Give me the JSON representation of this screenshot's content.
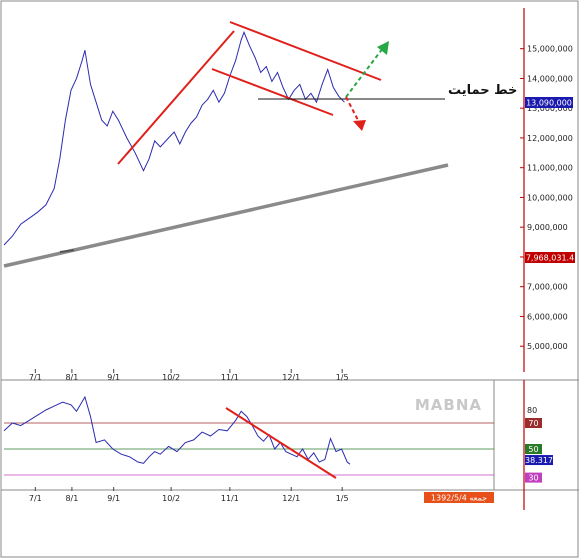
{
  "chart_data": [
    {
      "type": "line",
      "panel": "price",
      "x_ticks": [
        "7/1",
        "8/1",
        "9/1",
        "10/2",
        "11/1",
        "12/1",
        "1/5"
      ],
      "y_ticks": [
        "15,000,000",
        "14,000,000",
        "13,000,000",
        "12,000,000",
        "11,000,000",
        "10,000,000",
        "9,000,000",
        "8,000,000",
        "7,000,000",
        "6,000,000",
        "5,000,000"
      ],
      "ylim": [
        4200000,
        16300000
      ],
      "series": [
        {
          "color": "#2b2bb0",
          "points": [
            [
              0,
              8400000
            ],
            [
              0.3,
              8700000
            ],
            [
              0.6,
              9100000
            ],
            [
              0.9,
              9300000
            ],
            [
              1.2,
              9500000
            ],
            [
              1.5,
              9750000
            ],
            [
              1.8,
              10300000
            ],
            [
              2.0,
              11300000
            ],
            [
              2.2,
              12600000
            ],
            [
              2.4,
              13600000
            ],
            [
              2.6,
              14000000
            ],
            [
              2.8,
              14600000
            ],
            [
              2.9,
              14950000
            ],
            [
              3.1,
              13800000
            ],
            [
              3.3,
              13200000
            ],
            [
              3.5,
              12600000
            ],
            [
              3.7,
              12400000
            ],
            [
              3.9,
              12900000
            ],
            [
              4.1,
              12600000
            ],
            [
              4.4,
              12000000
            ],
            [
              4.7,
              11500000
            ],
            [
              5.0,
              10900000
            ],
            [
              5.2,
              11300000
            ],
            [
              5.4,
              11900000
            ],
            [
              5.6,
              11700000
            ],
            [
              5.9,
              12000000
            ],
            [
              6.1,
              12200000
            ],
            [
              6.3,
              11800000
            ],
            [
              6.5,
              12200000
            ],
            [
              6.7,
              12500000
            ],
            [
              6.9,
              12700000
            ],
            [
              7.1,
              13100000
            ],
            [
              7.3,
              13300000
            ],
            [
              7.5,
              13600000
            ],
            [
              7.7,
              13200000
            ],
            [
              7.9,
              13500000
            ],
            [
              8.1,
              14100000
            ],
            [
              8.3,
              14600000
            ],
            [
              8.5,
              15300000
            ],
            [
              8.6,
              15550000
            ],
            [
              8.8,
              15100000
            ],
            [
              9.0,
              14700000
            ],
            [
              9.2,
              14200000
            ],
            [
              9.4,
              14400000
            ],
            [
              9.6,
              13900000
            ],
            [
              9.8,
              14200000
            ],
            [
              10.0,
              13700000
            ],
            [
              10.2,
              13300000
            ],
            [
              10.4,
              13600000
            ],
            [
              10.6,
              13800000
            ],
            [
              10.8,
              13300000
            ],
            [
              11.0,
              13500000
            ],
            [
              11.2,
              13200000
            ],
            [
              11.4,
              13800000
            ],
            [
              11.6,
              14300000
            ],
            [
              11.8,
              13700000
            ],
            [
              12.0,
              13400000
            ],
            [
              12.2,
              13200000
            ]
          ]
        }
      ],
      "hlines": [
        {
          "value": 13090000,
          "label": "13,090,000",
          "color": "#1a1ab0"
        },
        {
          "value": 7968031.4,
          "label": "7,968,031.4",
          "color": "#c00000"
        }
      ],
      "annotation": "خط حمایت"
    },
    {
      "type": "line",
      "panel": "rsi",
      "x_ticks": [
        "7/1",
        "8/1",
        "9/1",
        "10/2",
        "11/1",
        "12/1",
        "1/5"
      ],
      "y_ticks": [
        "80"
      ],
      "ylim": [
        20,
        100
      ],
      "levels": [
        {
          "value": 70,
          "label": "70",
          "color": "#9b2c2c"
        },
        {
          "value": 50,
          "label": "50",
          "color": "#2a7a2a"
        },
        {
          "value": 30,
          "label": "30",
          "color": "#c040c0"
        }
      ],
      "current": {
        "value": 38.317,
        "label": "38.317",
        "color": "#1a1ab0"
      },
      "series": [
        {
          "color": "#2b2bb0",
          "points": [
            [
              0,
              64
            ],
            [
              0.3,
              70
            ],
            [
              0.6,
              68
            ],
            [
              0.9,
              72
            ],
            [
              1.2,
              76
            ],
            [
              1.5,
              80
            ],
            [
              1.8,
              83
            ],
            [
              2.1,
              86
            ],
            [
              2.4,
              84
            ],
            [
              2.6,
              79
            ],
            [
              2.9,
              90
            ],
            [
              3.1,
              75
            ],
            [
              3.3,
              55
            ],
            [
              3.6,
              57
            ],
            [
              3.9,
              50
            ],
            [
              4.2,
              46
            ],
            [
              4.5,
              44
            ],
            [
              4.8,
              40
            ],
            [
              5.0,
              39
            ],
            [
              5.2,
              44
            ],
            [
              5.4,
              48
            ],
            [
              5.6,
              46
            ],
            [
              5.9,
              52
            ],
            [
              6.2,
              48
            ],
            [
              6.5,
              55
            ],
            [
              6.8,
              57
            ],
            [
              7.1,
              63
            ],
            [
              7.4,
              60
            ],
            [
              7.7,
              65
            ],
            [
              8.0,
              64
            ],
            [
              8.3,
              72
            ],
            [
              8.5,
              79
            ],
            [
              8.7,
              75
            ],
            [
              8.9,
              68
            ],
            [
              9.1,
              60
            ],
            [
              9.3,
              56
            ],
            [
              9.5,
              61
            ],
            [
              9.7,
              50
            ],
            [
              9.9,
              55
            ],
            [
              10.1,
              48
            ],
            [
              10.3,
              46
            ],
            [
              10.5,
              44
            ],
            [
              10.7,
              50
            ],
            [
              10.9,
              42
            ],
            [
              11.1,
              47
            ],
            [
              11.3,
              40
            ],
            [
              11.5,
              42
            ],
            [
              11.7,
              58
            ],
            [
              11.9,
              48
            ],
            [
              12.1,
              50
            ],
            [
              12.3,
              40
            ],
            [
              12.4,
              38.3
            ]
          ]
        }
      ]
    }
  ],
  "watermark": "MABNA",
  "date_badge": "1392/5/4 جمعه",
  "colors": {
    "trend": "#e0201a",
    "baseline": "#8a8a8a",
    "arrow_up": "#27a844",
    "axis_red": "#c00000"
  }
}
